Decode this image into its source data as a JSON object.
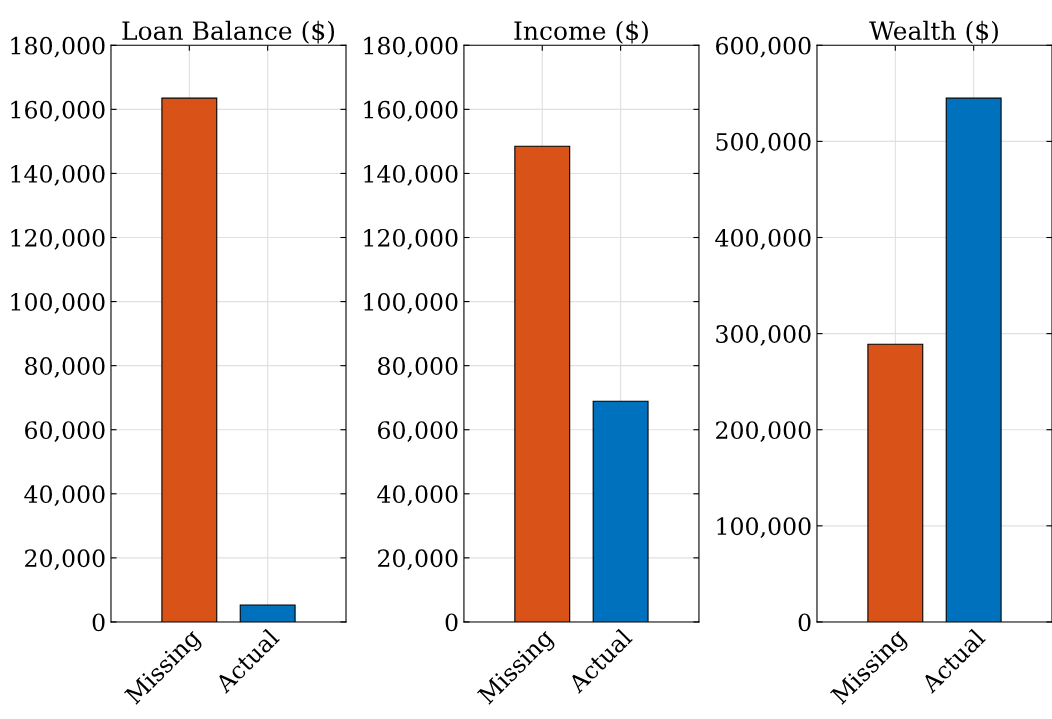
{
  "chart_data": [
    {
      "type": "bar",
      "title": "Loan Balance ($)",
      "categories": [
        "Missing",
        "Actual"
      ],
      "values": [
        163500,
        5300
      ],
      "colors": [
        "#d95319",
        "#0072bd"
      ],
      "ylim": [
        0,
        180000
      ],
      "yticks": [
        0,
        {
          "value": 20000,
          "label": "20,000"
        },
        {
          "value": 40000,
          "label": "40,000"
        },
        {
          "value": 60000,
          "label": "60,000"
        },
        {
          "value": 80000,
          "label": "80,000"
        },
        {
          "value": 100000,
          "label": "100,000"
        },
        {
          "value": 120000,
          "label": "120,000"
        },
        {
          "value": 140000,
          "label": "140,000"
        },
        {
          "value": 160000,
          "label": "160,000"
        },
        {
          "value": 180000,
          "label": "180,000"
        }
      ],
      "grid": true
    },
    {
      "type": "bar",
      "title": "Income ($)",
      "categories": [
        "Missing",
        "Actual"
      ],
      "values": [
        148500,
        68900
      ],
      "colors": [
        "#d95319",
        "#0072bd"
      ],
      "ylim": [
        0,
        180000
      ],
      "yticks": [
        0,
        {
          "value": 20000,
          "label": "20,000"
        },
        {
          "value": 40000,
          "label": "40,000"
        },
        {
          "value": 60000,
          "label": "60,000"
        },
        {
          "value": 80000,
          "label": "80,000"
        },
        {
          "value": 100000,
          "label": "100,000"
        },
        {
          "value": 120000,
          "label": "120,000"
        },
        {
          "value": 140000,
          "label": "140,000"
        },
        {
          "value": 160000,
          "label": "160,000"
        },
        {
          "value": 180000,
          "label": "180,000"
        }
      ],
      "grid": true
    },
    {
      "type": "bar",
      "title": "Wealth ($)",
      "categories": [
        "Missing",
        "Actual"
      ],
      "values": [
        289000,
        545000
      ],
      "colors": [
        "#d95319",
        "#0072bd"
      ],
      "ylim": [
        0,
        600000
      ],
      "yticks": [
        0,
        {
          "value": 100000,
          "label": "100,000"
        },
        {
          "value": 200000,
          "label": "200,000"
        },
        {
          "value": 300000,
          "label": "300,000"
        },
        {
          "value": 400000,
          "label": "400,000"
        },
        {
          "value": 500000,
          "label": "500,000"
        },
        {
          "value": 600000,
          "label": "600,000"
        }
      ],
      "grid": true
    }
  ]
}
